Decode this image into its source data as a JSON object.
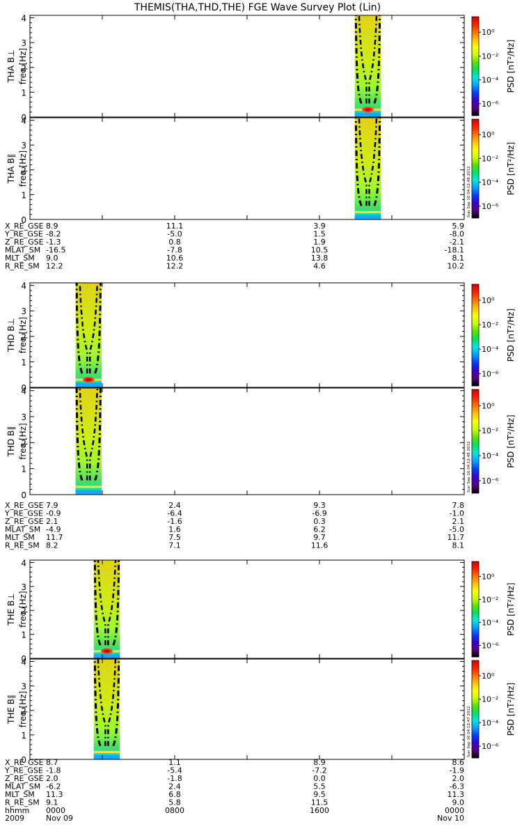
{
  "title": "THEMIS(THA,THD,THE) FGE Wave Survey Plot (Lin)",
  "colorbar": {
    "label": "PSD [nT²/Hz]",
    "tick_exponents": [
      0,
      -2,
      -4,
      -6
    ],
    "tick_labels": [
      "10⁰",
      "10⁻²",
      "10⁻⁴",
      "10⁻⁶"
    ],
    "log_range": [
      -7,
      1.3
    ],
    "colors": [
      "#000000",
      "#5a0080",
      "#3a00d0",
      "#0040ff",
      "#00a0ff",
      "#00e8e0",
      "#00e060",
      "#60e000",
      "#c8ff00",
      "#ffff00",
      "#ffc000",
      "#ff7000",
      "#ff2000",
      "#d00000"
    ]
  },
  "chart_data": [
    {
      "type": "heatmap",
      "probe": "THA",
      "component": "perp",
      "ylabel": "THA B⊥",
      "yunit": "freq [Hz]",
      "yticks": [
        0,
        1,
        2,
        3,
        4
      ],
      "ylim": [
        0,
        4.1
      ],
      "data_start_frac": 0.748,
      "data_end_frac": 0.808,
      "fce_center_frac": 0.778,
      "stamp": ""
    },
    {
      "type": "heatmap",
      "probe": "THA",
      "component": "par",
      "ylabel": "THA B∥",
      "yunit": "freq [Hz]",
      "yticks": [
        0,
        1,
        2,
        3,
        4
      ],
      "ylim": [
        0,
        4.1
      ],
      "data_start_frac": 0.748,
      "data_end_frac": 0.808,
      "fce_center_frac": 0.778,
      "stamp": "Sun Sep 16 04:12:48 2012"
    },
    {
      "type": "heatmap",
      "probe": "THD",
      "component": "perp",
      "ylabel": "THD B⊥",
      "yunit": "freq [Hz]",
      "yticks": [
        0,
        1,
        2,
        3,
        4
      ],
      "ylim": [
        0,
        4.1
      ],
      "data_start_frac": 0.105,
      "data_end_frac": 0.165,
      "fce_center_frac": 0.135,
      "stamp": ""
    },
    {
      "type": "heatmap",
      "probe": "THD",
      "component": "par",
      "ylabel": "THD B∥",
      "yunit": "freq [Hz]",
      "yticks": [
        0,
        1,
        2,
        3,
        4
      ],
      "ylim": [
        0,
        4.1
      ],
      "data_start_frac": 0.105,
      "data_end_frac": 0.165,
      "fce_center_frac": 0.135,
      "stamp": "Sun Sep 16 04:12:48 2012"
    },
    {
      "type": "heatmap",
      "probe": "THE",
      "component": "perp",
      "ylabel": "THE B⊥",
      "yunit": "freq [Hz]",
      "yticks": [
        0,
        1,
        2,
        3,
        4
      ],
      "ylim": [
        0,
        4.1
      ],
      "data_start_frac": 0.147,
      "data_end_frac": 0.207,
      "fce_center_frac": 0.177,
      "stamp": ""
    },
    {
      "type": "heatmap",
      "probe": "THE",
      "component": "par",
      "ylabel": "THE B∥",
      "yunit": "freq [Hz]",
      "yticks": [
        0,
        1,
        2,
        3,
        4
      ],
      "ylim": [
        0,
        4.1
      ],
      "data_start_frac": 0.147,
      "data_end_frac": 0.207,
      "fce_center_frac": 0.177,
      "stamp": "Sun Sep 16 04:12:47 2012"
    }
  ],
  "ephemeris_blocks": [
    {
      "rows": [
        {
          "label": "X_RE_GSE",
          "values": [
            "8.9",
            "11.1",
            "3.9",
            "5.9"
          ]
        },
        {
          "label": "Y_RE_GSE",
          "values": [
            "-8.2",
            "-5.0",
            "1.5",
            "-8.0"
          ]
        },
        {
          "label": "Z_RE_GSE",
          "values": [
            "-1.3",
            "0.8",
            "1.9",
            "-2.1"
          ]
        },
        {
          "label": "MLAT_SM",
          "values": [
            "-16.5",
            "-7.8",
            "10.5",
            "-18.1"
          ]
        },
        {
          "label": "MLT_SM",
          "values": [
            "9.0",
            "10.6",
            "13.8",
            "8.1"
          ]
        },
        {
          "label": "R_RE_SM",
          "values": [
            "12.2",
            "12.2",
            "4.6",
            "10.2"
          ]
        }
      ]
    },
    {
      "rows": [
        {
          "label": "X_RE_GSE",
          "values": [
            "7.9",
            "2.4",
            "9.3",
            "7.8"
          ]
        },
        {
          "label": "Y_RE_GSE",
          "values": [
            "-0.9",
            "-6.4",
            "-6.9",
            "-1.0"
          ]
        },
        {
          "label": "Z_RE_GSE",
          "values": [
            "2.1",
            "-1.6",
            "0.3",
            "2.1"
          ]
        },
        {
          "label": "MLAT_SM",
          "values": [
            "-4.9",
            "1.6",
            "6.2",
            "-5.0"
          ]
        },
        {
          "label": "MLT_SM",
          "values": [
            "11.7",
            "7.5",
            "9.7",
            "11.7"
          ]
        },
        {
          "label": "R_RE_SM",
          "values": [
            "8.2",
            "7.1",
            "11.6",
            "8.1"
          ]
        }
      ]
    },
    {
      "rows": [
        {
          "label": "X_RE_GSE",
          "values": [
            "8.7",
            "1.1",
            "8.9",
            "8.6"
          ]
        },
        {
          "label": "Y_RE_GSE",
          "values": [
            "-1.8",
            "-5.4",
            "-7.2",
            "-1.9"
          ]
        },
        {
          "label": "Z_RE_GSE",
          "values": [
            "2.0",
            "-1.8",
            "0.0",
            "2.0"
          ]
        },
        {
          "label": "MLAT_SM",
          "values": [
            "-6.2",
            "2.4",
            "5.5",
            "-6.3"
          ]
        },
        {
          "label": "MLT_SM",
          "values": [
            "11.3",
            "6.8",
            "9.5",
            "11.3"
          ]
        },
        {
          "label": "R_RE_SM",
          "values": [
            "9.1",
            "5.8",
            "11.5",
            "9.0"
          ]
        }
      ],
      "time_label": "hhmm",
      "time_ticks": [
        "0000",
        "0800",
        "1600",
        "0000"
      ],
      "year_label": "2009",
      "date_start": "Nov 09",
      "date_end": "Nov 10"
    }
  ]
}
